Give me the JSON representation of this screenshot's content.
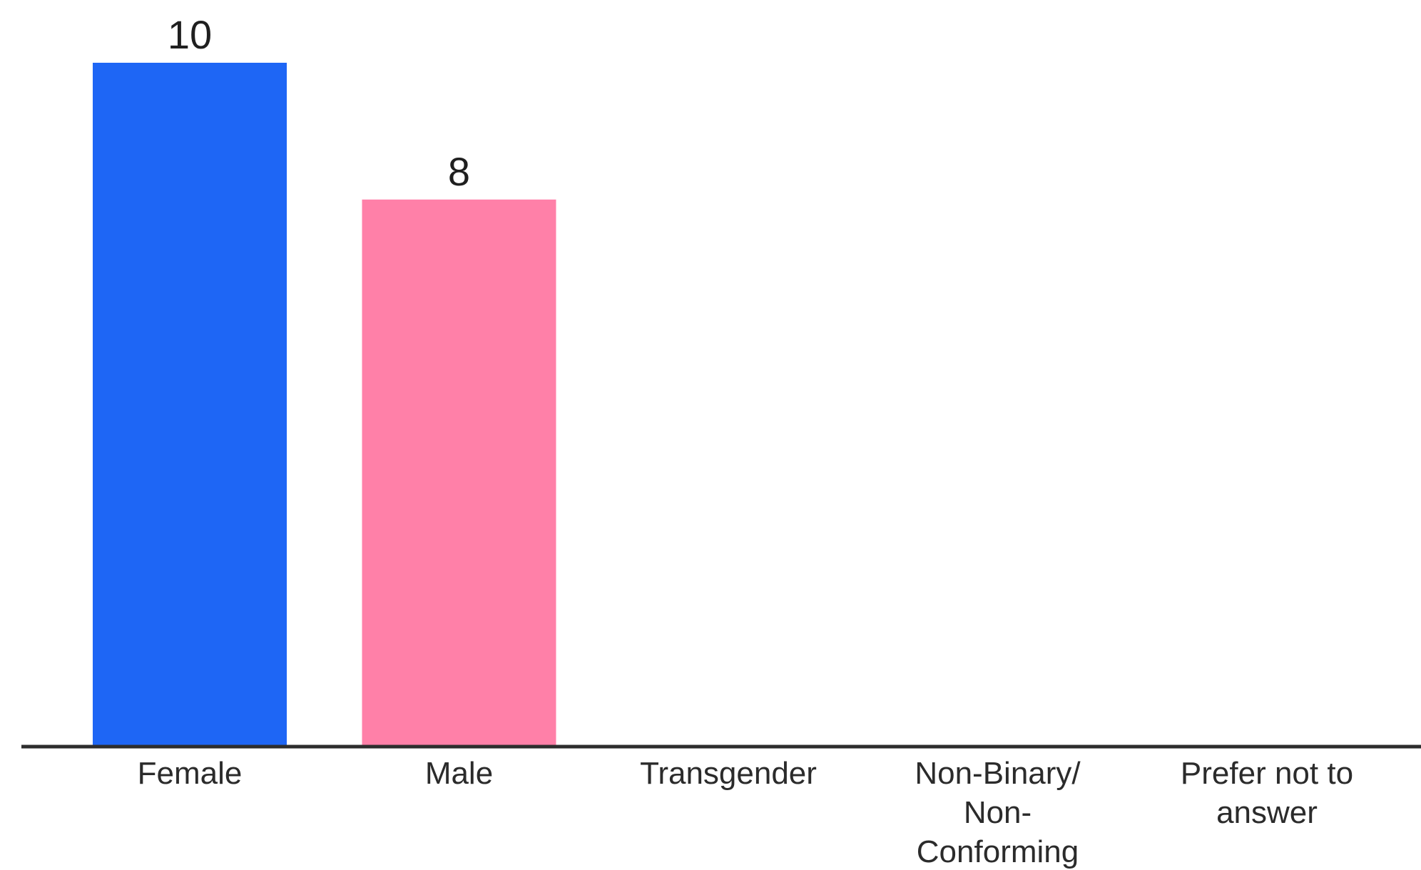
{
  "chart_data": {
    "type": "bar",
    "title": "",
    "xlabel": "",
    "ylabel": "",
    "categories": [
      "Female",
      "Male",
      "Transgender",
      "Non-Binary/ Non- Conforming",
      "Prefer not to answer"
    ],
    "category_lines": [
      [
        "Female"
      ],
      [
        "Male"
      ],
      [
        "Transgender"
      ],
      [
        "Non-Binary/",
        "Non-",
        "Conforming"
      ],
      [
        "Prefer not to",
        "answer"
      ]
    ],
    "values": [
      10,
      8,
      0,
      0,
      0
    ],
    "data_labels": [
      "10",
      "8",
      "",
      "",
      ""
    ],
    "colors": [
      "#1E66F5",
      "#FF80A8",
      "#1E66F5",
      "#1E66F5",
      "#1E66F5"
    ],
    "ylim": [
      0,
      10
    ],
    "grid": false,
    "legend": "none"
  }
}
